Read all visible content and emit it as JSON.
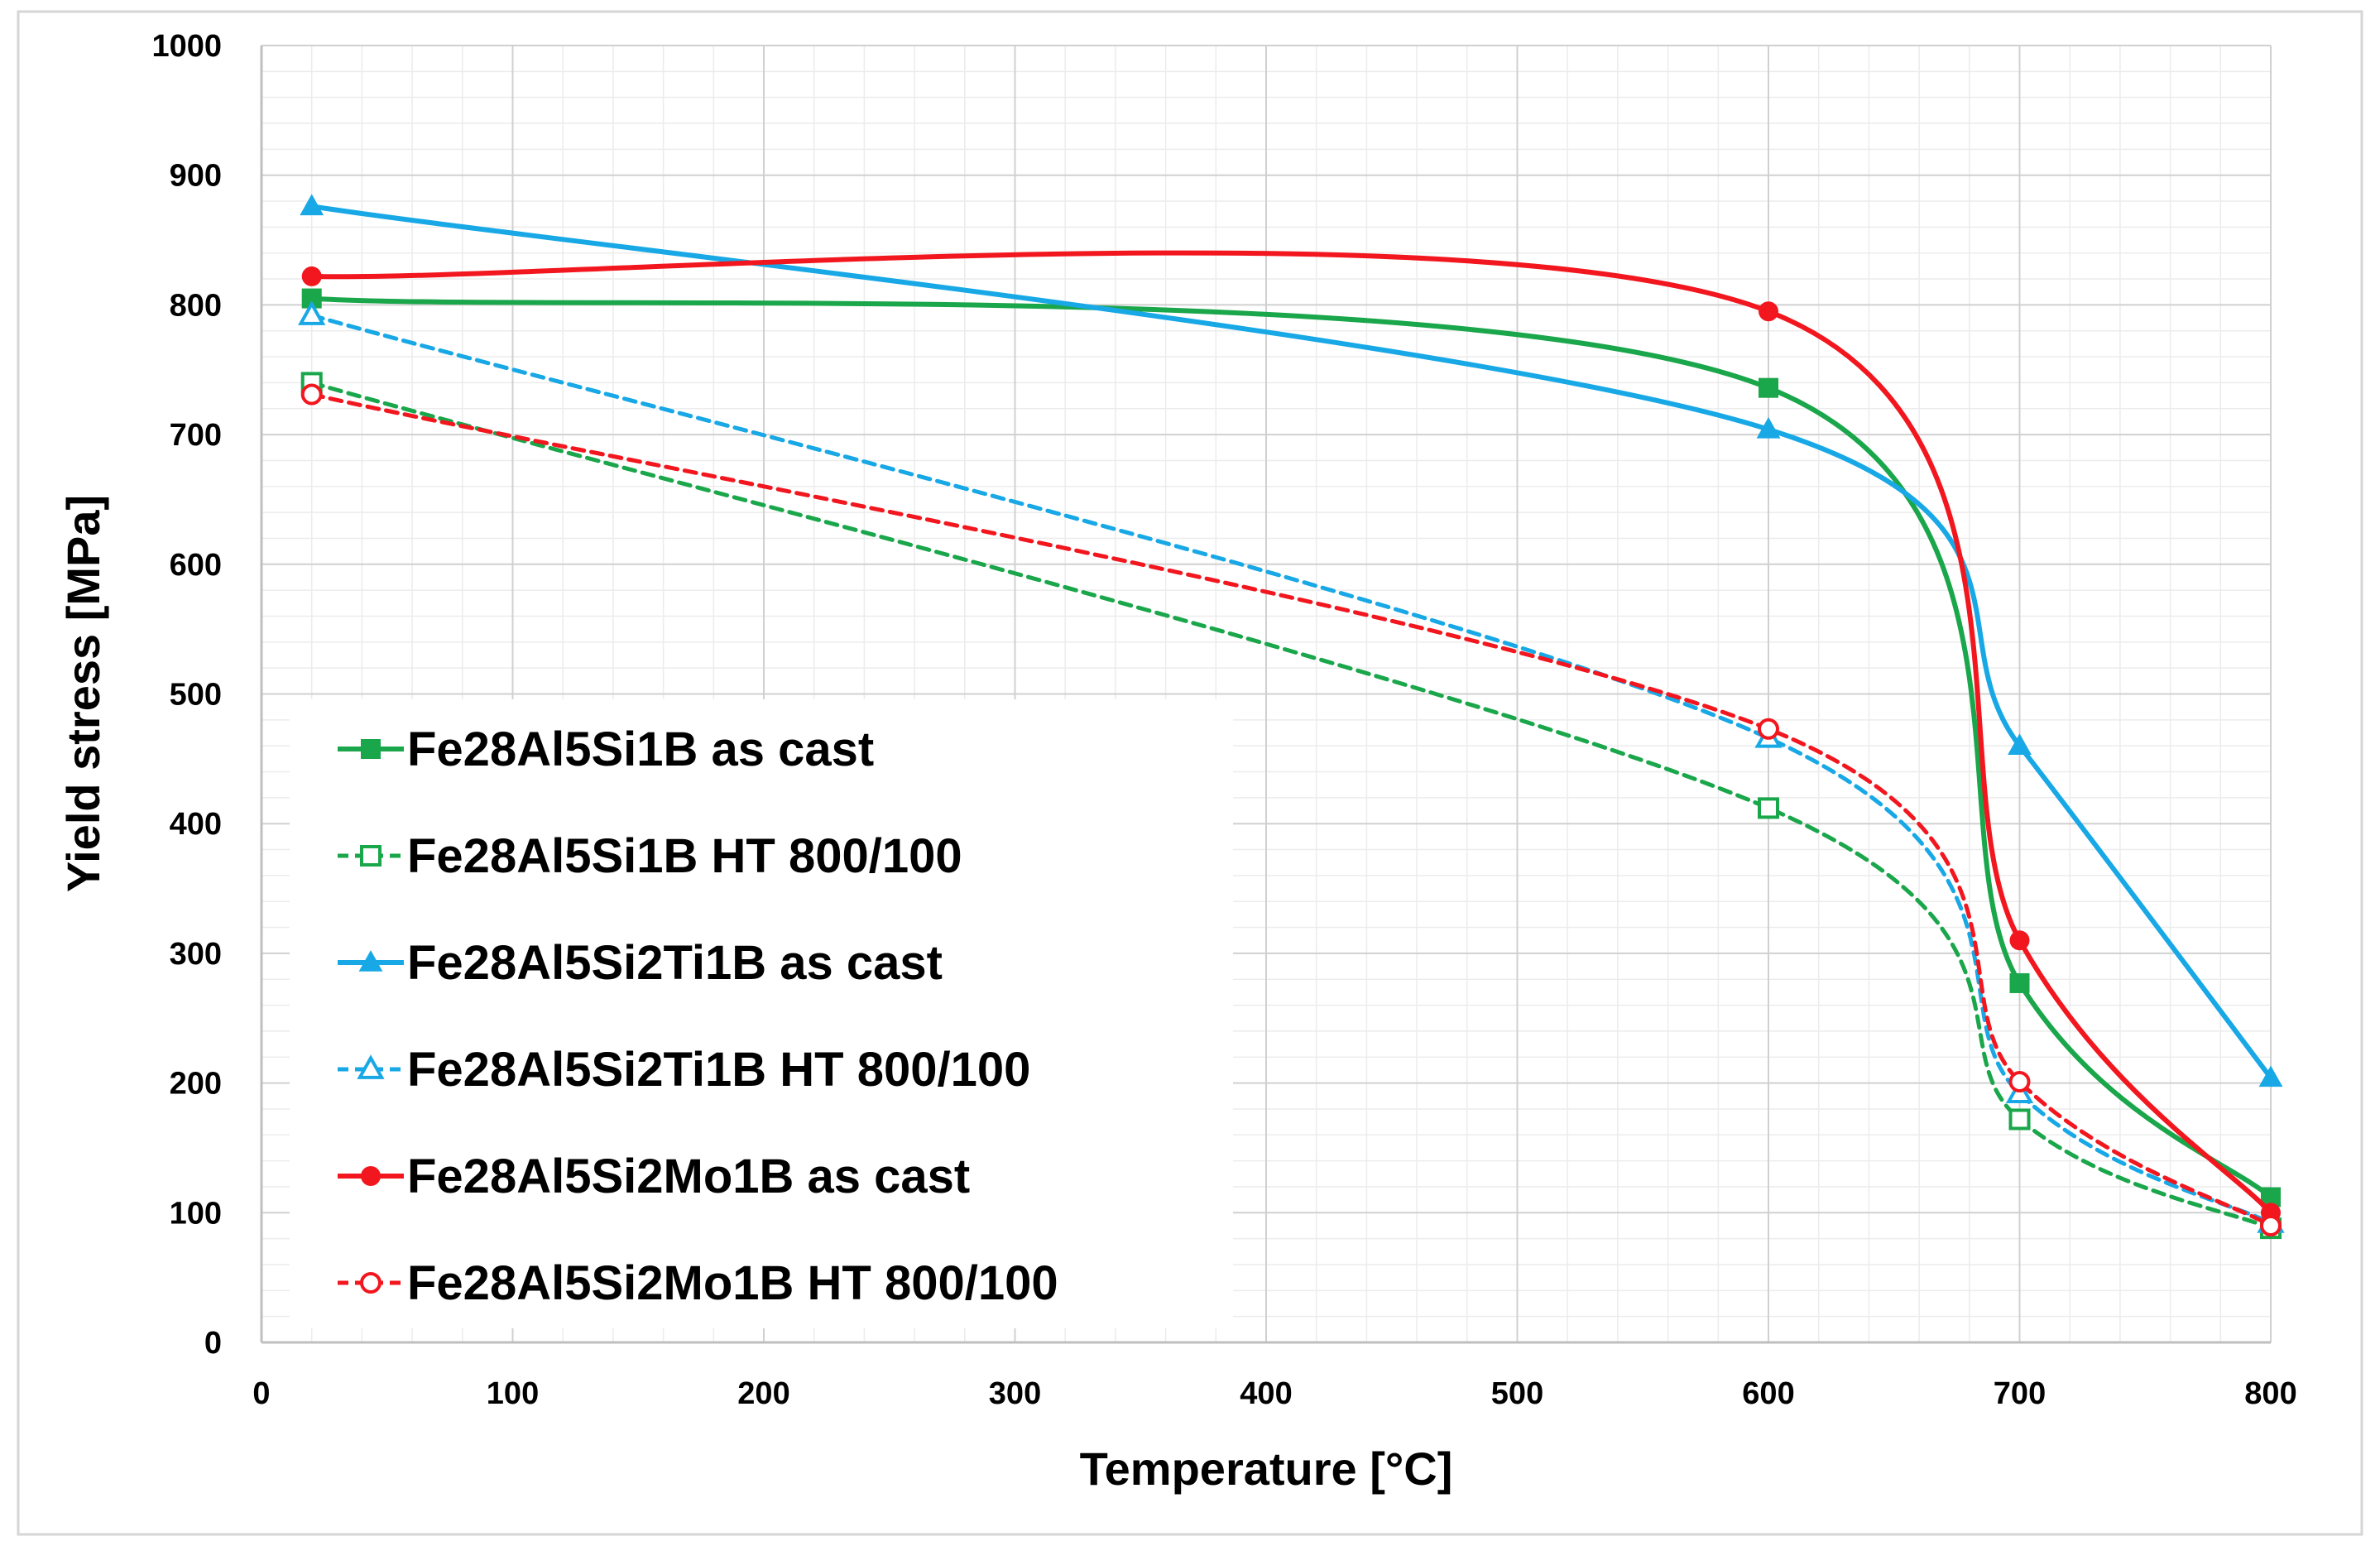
{
  "chart_data": {
    "type": "line",
    "title": "",
    "xlabel": "Temperature [°C]",
    "ylabel": "Yield stress [MPa]",
    "xlim": [
      0,
      800
    ],
    "ylim": [
      0,
      1000
    ],
    "x_ticks": [
      "0",
      "100",
      "200",
      "300",
      "400",
      "500",
      "600",
      "700",
      "800"
    ],
    "y_ticks": [
      "0",
      "100",
      "200",
      "300",
      "400",
      "500",
      "600",
      "700",
      "800",
      "900",
      "1000"
    ],
    "grid": true,
    "legend_position": "lower-left",
    "x": [
      20,
      600,
      700,
      800
    ],
    "series": [
      {
        "name": "Fe28Al5Si1B as cast",
        "values": [
          805,
          736,
          277,
          112
        ],
        "color": "#1aa64a",
        "dash": false,
        "marker": "square",
        "filled": true
      },
      {
        "name": "Fe28Al5Si1B HT 800/100",
        "values": [
          740,
          412,
          172,
          88
        ],
        "color": "#1aa64a",
        "dash": true,
        "marker": "square",
        "filled": false
      },
      {
        "name": "Fe28Al5Si2Ti1B as cast",
        "values": [
          876,
          704,
          460,
          204
        ],
        "color": "#18a8e6",
        "dash": false,
        "marker": "triangle",
        "filled": true
      },
      {
        "name": "Fe28Al5Si2Ti1B HT 800/100",
        "values": [
          792,
          466,
          192,
          92
        ],
        "color": "#18a8e6",
        "dash": true,
        "marker": "triangle",
        "filled": false
      },
      {
        "name": "Fe28Al5Si2Mo1B as cast",
        "values": [
          822,
          795,
          310,
          100
        ],
        "color": "#f2161e",
        "dash": false,
        "marker": "circle",
        "filled": true
      },
      {
        "name": "Fe28Al5Si2Mo1B HT 800/100",
        "values": [
          731,
          473,
          201,
          90
        ],
        "color": "#f2161e",
        "dash": true,
        "marker": "circle",
        "filled": false
      }
    ]
  }
}
